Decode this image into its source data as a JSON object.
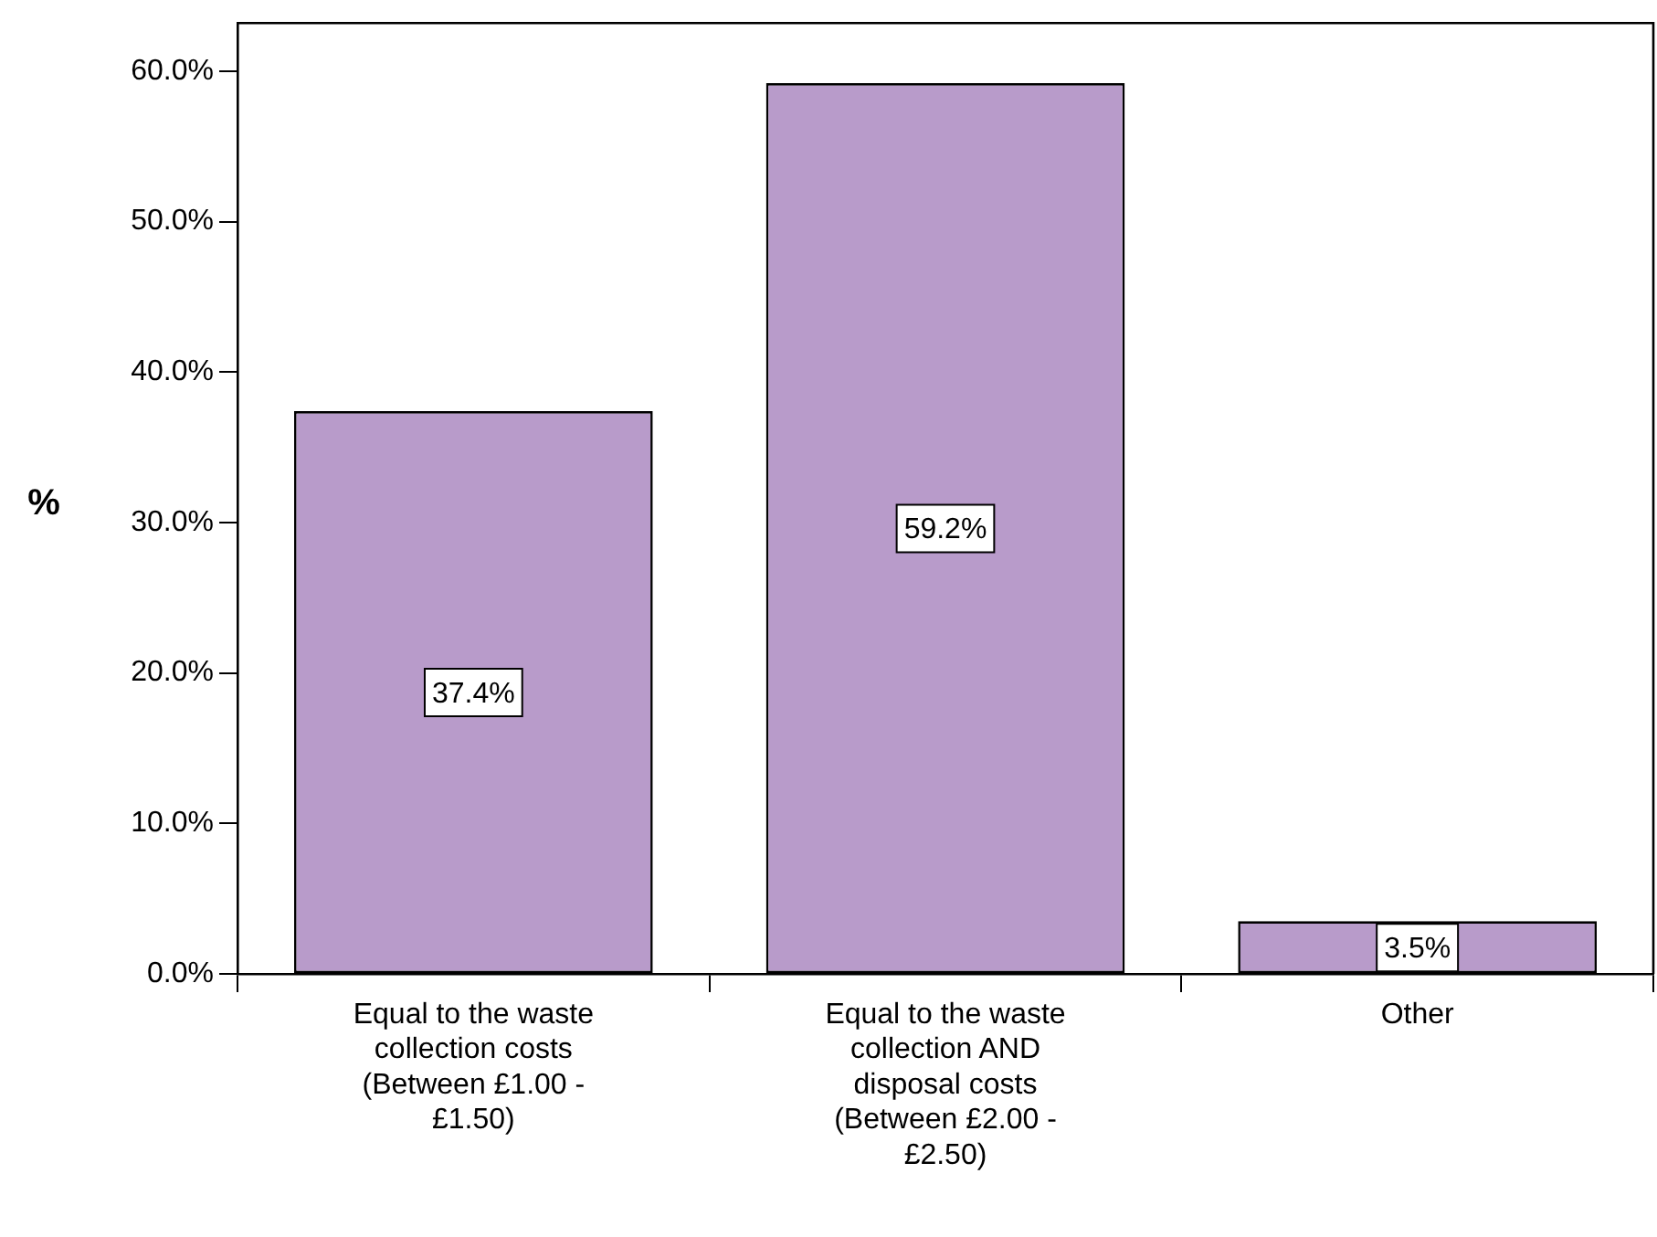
{
  "chart_data": {
    "type": "bar",
    "categories": [
      "Equal to the waste collection costs (Between £1.00 - £1.50)",
      "Equal to the waste collection AND disposal costs (Between £2.00 - £2.50)",
      "Other"
    ],
    "values": [
      37.4,
      59.2,
      3.5
    ],
    "value_labels": [
      "37.4%",
      "59.2%",
      "3.5%"
    ],
    "color": "#b89bca",
    "ylabel": "%",
    "ylim": [
      0,
      63.2
    ],
    "yticks": [
      {
        "value": 0,
        "label": "0.0%"
      },
      {
        "value": 10,
        "label": "10.0%"
      },
      {
        "value": 20,
        "label": "20.0%"
      },
      {
        "value": 30,
        "label": "30.0%"
      },
      {
        "value": 40,
        "label": "40.0%"
      },
      {
        "value": 50,
        "label": "50.0%"
      },
      {
        "value": 60,
        "label": "60.0%"
      }
    ],
    "grid": false,
    "legend": false
  }
}
